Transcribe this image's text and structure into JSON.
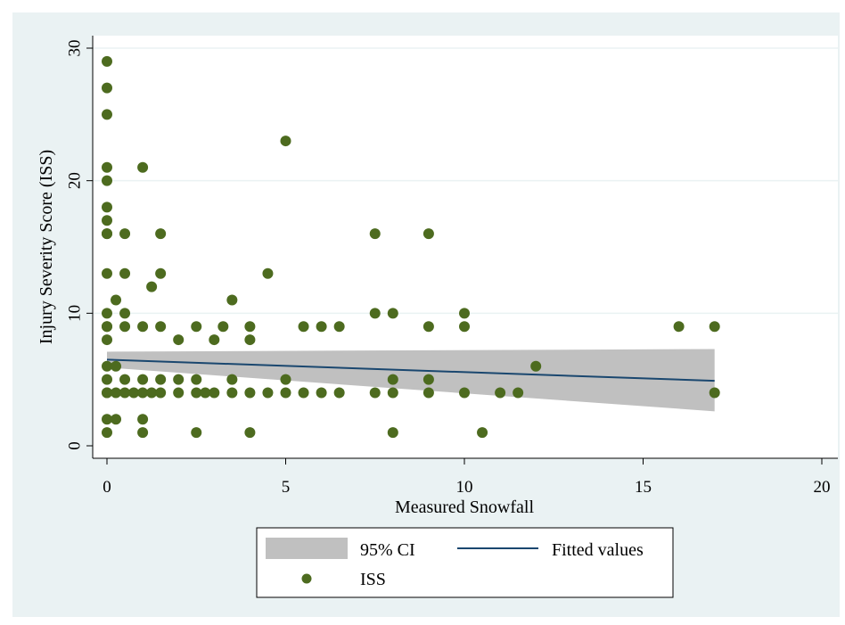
{
  "chart_data": {
    "type": "scatter",
    "xlabel": "Measured Snowfall",
    "ylabel": "Injury Severity Score (ISS)",
    "xlim": [
      0,
      20
    ],
    "ylim": [
      0,
      30
    ],
    "x_ticks": [
      "0",
      "5",
      "10",
      "15",
      "20"
    ],
    "x_tick_values": [
      0,
      5,
      10,
      15,
      20
    ],
    "y_ticks": [
      "0",
      "10",
      "20",
      "30"
    ],
    "y_tick_values": [
      0,
      10,
      20,
      30
    ],
    "grid": "horizontal",
    "legend_position": "bottom",
    "legend": {
      "ci_label": "95% CI",
      "fit_label": "Fitted values",
      "points_label": "ISS"
    },
    "colors": {
      "outer_background": "#eaf2f3",
      "plot_background": "#ffffff",
      "points": "#4d6b1f",
      "fit_line": "#1a476f",
      "ci_band": "#c0c0c0"
    },
    "fitted_line": {
      "x": [
        0,
        17
      ],
      "y": [
        6.5,
        4.9
      ]
    },
    "ci_band": {
      "x": [
        0,
        17
      ],
      "lower": [
        5.9,
        2.6
      ],
      "upper": [
        7.1,
        7.3
      ]
    },
    "series": [
      {
        "name": "ISS",
        "points": [
          [
            0,
            1
          ],
          [
            0,
            2
          ],
          [
            0,
            4
          ],
          [
            0,
            4
          ],
          [
            0,
            5
          ],
          [
            0,
            6
          ],
          [
            0,
            8
          ],
          [
            0,
            9
          ],
          [
            0,
            9
          ],
          [
            0,
            10
          ],
          [
            0,
            13
          ],
          [
            0,
            16
          ],
          [
            0,
            16
          ],
          [
            0,
            17
          ],
          [
            0,
            18
          ],
          [
            0,
            20
          ],
          [
            0,
            21
          ],
          [
            0,
            25
          ],
          [
            0,
            27
          ],
          [
            0,
            29
          ],
          [
            0.25,
            2
          ],
          [
            0.25,
            4
          ],
          [
            0.25,
            6
          ],
          [
            0.25,
            11
          ],
          [
            0.5,
            4
          ],
          [
            0.5,
            5
          ],
          [
            0.5,
            9
          ],
          [
            0.5,
            10
          ],
          [
            0.5,
            13
          ],
          [
            0.5,
            16
          ],
          [
            0.75,
            4
          ],
          [
            1,
            1
          ],
          [
            1,
            2
          ],
          [
            1,
            4
          ],
          [
            1,
            5
          ],
          [
            1,
            9
          ],
          [
            1,
            21
          ],
          [
            1.25,
            4
          ],
          [
            1.25,
            12
          ],
          [
            1.5,
            4
          ],
          [
            1.5,
            5
          ],
          [
            1.5,
            9
          ],
          [
            1.5,
            13
          ],
          [
            1.5,
            16
          ],
          [
            2,
            4
          ],
          [
            2,
            5
          ],
          [
            2,
            8
          ],
          [
            2.5,
            1
          ],
          [
            2.5,
            4
          ],
          [
            2.5,
            5
          ],
          [
            2.5,
            9
          ],
          [
            2.75,
            4
          ],
          [
            3,
            4
          ],
          [
            3,
            8
          ],
          [
            3.25,
            9
          ],
          [
            3.5,
            4
          ],
          [
            3.5,
            5
          ],
          [
            3.5,
            11
          ],
          [
            4,
            1
          ],
          [
            4,
            4
          ],
          [
            4,
            8
          ],
          [
            4,
            9
          ],
          [
            4.5,
            4
          ],
          [
            4.5,
            13
          ],
          [
            5,
            4
          ],
          [
            5,
            5
          ],
          [
            5,
            23
          ],
          [
            5.5,
            4
          ],
          [
            5.5,
            9
          ],
          [
            6,
            4
          ],
          [
            6,
            9
          ],
          [
            6.5,
            4
          ],
          [
            6.5,
            9
          ],
          [
            7.5,
            4
          ],
          [
            7.5,
            10
          ],
          [
            7.5,
            16
          ],
          [
            8,
            1
          ],
          [
            8,
            4
          ],
          [
            8,
            5
          ],
          [
            8,
            10
          ],
          [
            9,
            4
          ],
          [
            9,
            5
          ],
          [
            9,
            9
          ],
          [
            9,
            16
          ],
          [
            10,
            4
          ],
          [
            10,
            9
          ],
          [
            10,
            10
          ],
          [
            10.5,
            1
          ],
          [
            11,
            4
          ],
          [
            11.5,
            4
          ],
          [
            12,
            6
          ],
          [
            16,
            9
          ],
          [
            17,
            4
          ],
          [
            17,
            9
          ]
        ]
      }
    ]
  }
}
